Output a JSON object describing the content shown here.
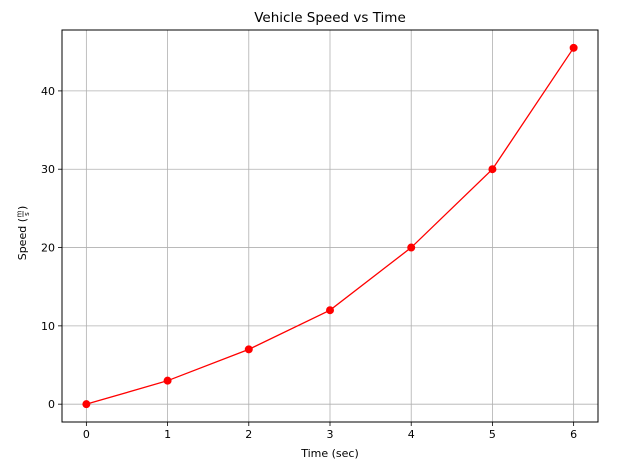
{
  "chart_data": {
    "type": "line",
    "title": "Vehicle Speed vs Time",
    "xlabel": "Time (sec)",
    "ylabel": {
      "prefix": "Speed (",
      "numerator": "m",
      "denominator": "s",
      "suffix": ")"
    },
    "x": [
      0,
      1,
      2,
      3,
      4,
      5,
      6
    ],
    "series": [
      {
        "values": [
          0,
          3,
          7,
          12,
          20,
          30,
          45.5
        ],
        "color": "#ff0000",
        "marker": "circle"
      }
    ],
    "xlim": [
      -0.3,
      6.3
    ],
    "ylim": [
      -2.275,
      47.775
    ],
    "xticks": [
      0,
      1,
      2,
      3,
      4,
      5,
      6
    ],
    "yticks": [
      0,
      10,
      20,
      30,
      40
    ],
    "grid": true
  }
}
